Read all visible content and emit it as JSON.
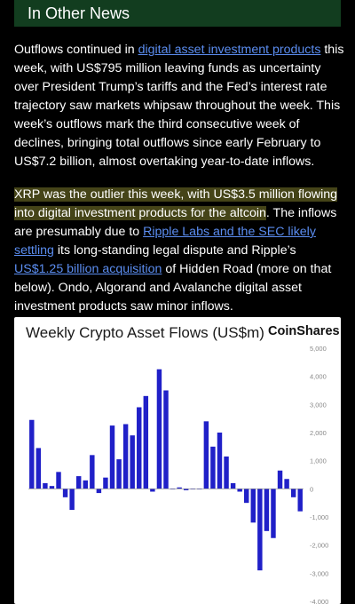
{
  "banner": {
    "title": "In Other News"
  },
  "article": {
    "p1": {
      "t0": "Outflows continued in ",
      "link": "digital asset investment products",
      "t1": " this week, with US$795 million leaving funds as uncertainty over President Trump’s tariffs and the Fed’s interest rate trajectory saw markets whipsaw throughout the week. This week’s outflows mark the third consecutive week of declines, bringing total outflows since early February to US$7.2 billion, almost overtaking year-to-date inflows."
    },
    "p2": {
      "highlight": "XRP was the outlier this week, with US$3.5 million flowing into digital investment products for the altcoin",
      "t1": ". The inflows are presumably due to ",
      "link1": "Ripple Labs and the SEC likely settling",
      "t2": " its long-standing legal dispute and Ripple’s ",
      "link2": "US$1.25 billion acquisition",
      "t3": " of Hidden Road (more on that below). Ondo, Algorand and Avalanche digital asset investment products saw minor inflows."
    }
  },
  "colors": {
    "bar": "#2020c8",
    "banner": "#123d1f",
    "link": "#5b8df0",
    "highlight": "#454418"
  },
  "chart_data": {
    "type": "bar",
    "title": "Weekly Crypto Asset Flows (US$m)",
    "brand": "CoinShares",
    "ylim": [
      -4000,
      5000
    ],
    "yticks": [
      5000,
      4000,
      3000,
      2000,
      1000,
      0,
      -1000,
      -2000,
      -3000,
      -4000
    ],
    "ytick_labels": [
      "5,000",
      "4,000",
      "3,000",
      "2,000",
      "1,000",
      "0",
      "-1,000",
      "-2,000",
      "-3,000",
      "-4,000"
    ],
    "values": [
      2450,
      1450,
      200,
      100,
      600,
      -300,
      -750,
      450,
      300,
      1200,
      -150,
      400,
      2250,
      1050,
      2300,
      1900,
      2900,
      3300,
      -100,
      4250,
      3500,
      0,
      50,
      -50,
      0,
      0,
      2400,
      1500,
      2000,
      1150,
      200,
      -100,
      -500,
      -1200,
      -2900,
      -1500,
      -1750,
      650,
      350,
      -300,
      -800
    ]
  }
}
